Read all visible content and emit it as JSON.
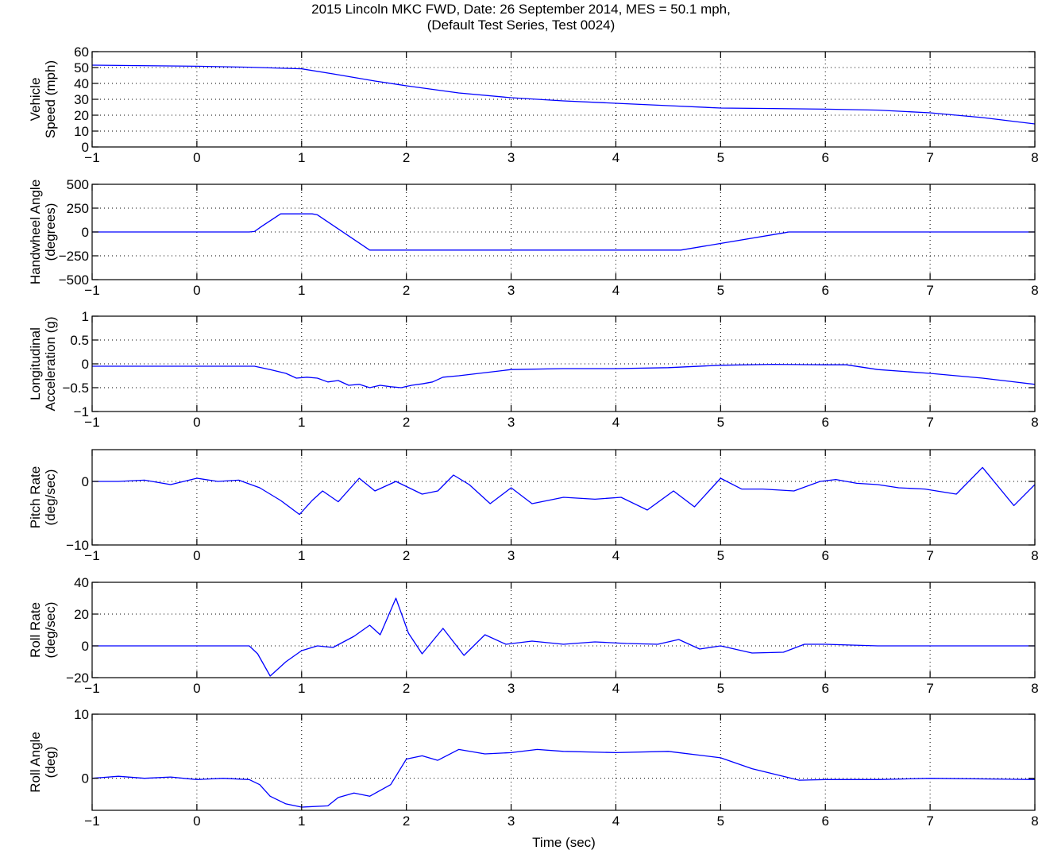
{
  "figure": {
    "title_line1": "2015 Lincoln MKC FWD, Date: 26 September 2014, MES = 50.1 mph,",
    "title_line2": "(Default Test Series, Test 0024)",
    "xlabel": "Time (sec)",
    "line_color": "#0000ff",
    "grid": "dotted"
  },
  "chart_data": [
    {
      "type": "line",
      "name": "vehicle-speed",
      "ylabel": [
        "Vehicle",
        "Speed (mph)"
      ],
      "xlim": [
        -1,
        8
      ],
      "ylim": [
        0,
        60
      ],
      "xticks": [
        -1,
        0,
        1,
        2,
        3,
        4,
        5,
        6,
        7,
        8
      ],
      "yticks": [
        0,
        10,
        20,
        30,
        40,
        50,
        60
      ],
      "ytick_labels": [
        "0",
        "10",
        "20",
        "30",
        "40",
        "50",
        "60"
      ],
      "series": [
        {
          "x": [
            -1,
            0,
            0.5,
            1,
            1.3,
            1.7,
            2,
            2.5,
            3,
            3.5,
            4,
            4.5,
            5,
            5.5,
            6,
            6.5,
            7,
            7.5,
            8
          ],
          "y": [
            51.5,
            50.8,
            50.2,
            49.2,
            46,
            41.5,
            38.5,
            34,
            31,
            29,
            27.5,
            26,
            24.5,
            24.2,
            23.8,
            23.2,
            21.5,
            18.5,
            14.5
          ]
        }
      ]
    },
    {
      "type": "line",
      "name": "handwheel-angle",
      "ylabel": [
        "Handwheel Angle",
        "(degrees)"
      ],
      "xlim": [
        -1,
        8
      ],
      "ylim": [
        -500,
        500
      ],
      "xticks": [
        -1,
        0,
        1,
        2,
        3,
        4,
        5,
        6,
        7,
        8
      ],
      "yticks": [
        -500,
        -250,
        0,
        250,
        500
      ],
      "ytick_labels": [
        "−500",
        "−250",
        "0",
        "250",
        "500"
      ],
      "series": [
        {
          "x": [
            -1,
            0.5,
            0.55,
            0.62,
            0.8,
            1.1,
            1.15,
            1.65,
            4.62,
            5.6,
            5.65,
            8
          ],
          "y": [
            0,
            0,
            5,
            60,
            190,
            190,
            180,
            -190,
            -190,
            -10,
            0,
            0
          ]
        }
      ]
    },
    {
      "type": "line",
      "name": "longitudinal-acceleration",
      "ylabel": [
        "Longitudinal",
        "Acceleration (g)"
      ],
      "xlim": [
        -1,
        8
      ],
      "ylim": [
        -1,
        1
      ],
      "xticks": [
        -1,
        0,
        1,
        2,
        3,
        4,
        5,
        6,
        7,
        8
      ],
      "yticks": [
        -1,
        -0.5,
        0,
        0.5,
        1
      ],
      "ytick_labels": [
        "−1",
        "−0.5",
        "0",
        "0.5",
        "1"
      ],
      "series": [
        {
          "x": [
            -1,
            0.55,
            0.7,
            0.85,
            0.95,
            1.05,
            1.15,
            1.25,
            1.35,
            1.45,
            1.55,
            1.65,
            1.75,
            1.85,
            1.95,
            2.05,
            2.15,
            2.25,
            2.35,
            2.5,
            3,
            3.5,
            4,
            4.5,
            5,
            5.5,
            6,
            6.2,
            6.5,
            7,
            7.5,
            8
          ],
          "y": [
            -0.05,
            -0.05,
            -0.12,
            -0.2,
            -0.3,
            -0.28,
            -0.3,
            -0.38,
            -0.35,
            -0.45,
            -0.43,
            -0.5,
            -0.45,
            -0.48,
            -0.5,
            -0.45,
            -0.42,
            -0.38,
            -0.28,
            -0.25,
            -0.12,
            -0.1,
            -0.1,
            -0.08,
            -0.03,
            -0.01,
            -0.02,
            -0.02,
            -0.12,
            -0.2,
            -0.3,
            -0.43
          ]
        }
      ]
    },
    {
      "type": "line",
      "name": "pitch-rate",
      "ylabel": [
        "Pitch Rate",
        "(deg/sec)"
      ],
      "xlim": [
        -1,
        8
      ],
      "ylim": [
        -10,
        5
      ],
      "xticks": [
        -1,
        0,
        1,
        2,
        3,
        4,
        5,
        6,
        7,
        8
      ],
      "yticks": [
        -10,
        0
      ],
      "ytick_labels": [
        "−10",
        "0"
      ],
      "series": [
        {
          "x": [
            -1,
            -0.75,
            -0.5,
            -0.25,
            0,
            0.2,
            0.4,
            0.6,
            0.8,
            0.98,
            1.1,
            1.2,
            1.35,
            1.55,
            1.7,
            1.9,
            2.15,
            2.3,
            2.45,
            2.6,
            2.8,
            3.0,
            3.2,
            3.5,
            3.8,
            4.05,
            4.3,
            4.55,
            4.75,
            5.0,
            5.2,
            5.4,
            5.7,
            5.95,
            6.1,
            6.3,
            6.5,
            6.7,
            6.95,
            7.25,
            7.5,
            7.8,
            8
          ],
          "y": [
            0,
            0,
            0.2,
            -0.5,
            0.5,
            0,
            0.2,
            -1,
            -3,
            -5.2,
            -3,
            -1.5,
            -3.2,
            0.5,
            -1.5,
            0,
            -2,
            -1.5,
            1,
            -0.5,
            -3.5,
            -1,
            -3.5,
            -2.5,
            -2.8,
            -2.5,
            -4.5,
            -1.5,
            -4,
            0.5,
            -1.2,
            -1.2,
            -1.5,
            0,
            0.3,
            -0.3,
            -0.5,
            -1,
            -1.2,
            -2,
            2.2,
            -3.8,
            -0.5
          ]
        }
      ]
    },
    {
      "type": "line",
      "name": "roll-rate",
      "ylabel": [
        "Roll Rate",
        "(deg/sec)"
      ],
      "xlim": [
        -1,
        8
      ],
      "ylim": [
        -20,
        40
      ],
      "xticks": [
        -1,
        0,
        1,
        2,
        3,
        4,
        5,
        6,
        7,
        8
      ],
      "yticks": [
        -20,
        0,
        20,
        40
      ],
      "ytick_labels": [
        "−20",
        "0",
        "20",
        "40"
      ],
      "series": [
        {
          "x": [
            -1,
            0.5,
            0.58,
            0.7,
            0.85,
            1.0,
            1.15,
            1.3,
            1.5,
            1.65,
            1.75,
            1.9,
            2.02,
            2.15,
            2.35,
            2.55,
            2.75,
            2.95,
            3.2,
            3.5,
            3.8,
            4.1,
            4.4,
            4.6,
            4.8,
            5.0,
            5.3,
            5.6,
            5.8,
            6.0,
            6.5,
            7,
            8
          ],
          "y": [
            0,
            0,
            -5,
            -19,
            -10,
            -3,
            0,
            -1,
            6,
            13,
            7,
            30,
            8,
            -5,
            11,
            -6,
            7,
            1,
            3,
            1,
            2.5,
            1.5,
            1,
            4,
            -2,
            0,
            -4.5,
            -4,
            1,
            1,
            0,
            0,
            0
          ]
        }
      ]
    },
    {
      "type": "line",
      "name": "roll-angle",
      "ylabel": [
        "Roll Angle",
        "(deg)"
      ],
      "xlim": [
        -1,
        8
      ],
      "ylim": [
        -5,
        10
      ],
      "xticks": [
        -1,
        0,
        1,
        2,
        3,
        4,
        5,
        6,
        7,
        8
      ],
      "yticks": [
        0,
        10
      ],
      "ytick_labels": [
        "0",
        "10"
      ],
      "series": [
        {
          "x": [
            -1,
            -0.75,
            -0.5,
            -0.25,
            0,
            0.25,
            0.5,
            0.6,
            0.7,
            0.85,
            1.0,
            1.25,
            1.35,
            1.5,
            1.65,
            1.85,
            2.0,
            2.15,
            2.3,
            2.5,
            2.75,
            3.0,
            3.25,
            3.5,
            4.0,
            4.5,
            5.0,
            5.3,
            5.75,
            6.0,
            6.5,
            7,
            8
          ],
          "y": [
            0,
            0.3,
            0,
            0.2,
            -0.2,
            0,
            -0.2,
            -1,
            -2.8,
            -4,
            -4.5,
            -4.3,
            -3,
            -2.3,
            -2.8,
            -1,
            3,
            3.5,
            2.8,
            4.5,
            3.8,
            4,
            4.5,
            4.2,
            4,
            4.2,
            3.2,
            1.5,
            -0.3,
            -0.2,
            -0.2,
            0,
            -0.2
          ]
        }
      ]
    }
  ]
}
